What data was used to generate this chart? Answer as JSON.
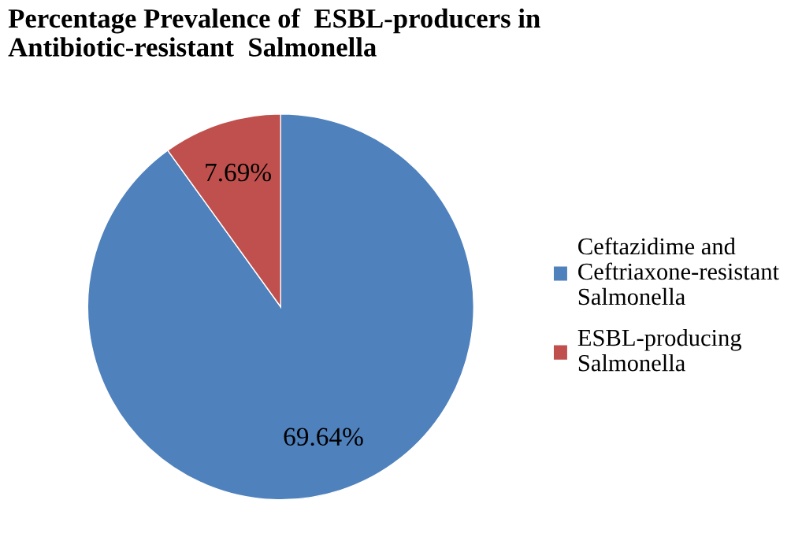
{
  "chart_data": {
    "type": "pie",
    "title": "Percentage Prevalence of  ESBL-producers in\nAntibiotic-resistant  Salmonella",
    "categories": [
      "Ceftazidime and\nCeftriaxone-resistant\nSalmonella",
      "ESBL-producing\nSalmonella"
    ],
    "values": [
      69.64,
      7.69
    ],
    "value_labels": [
      "69.64%",
      "7.69%"
    ],
    "colors": [
      "#4f81bd",
      "#c0504d"
    ],
    "legend": "right"
  }
}
